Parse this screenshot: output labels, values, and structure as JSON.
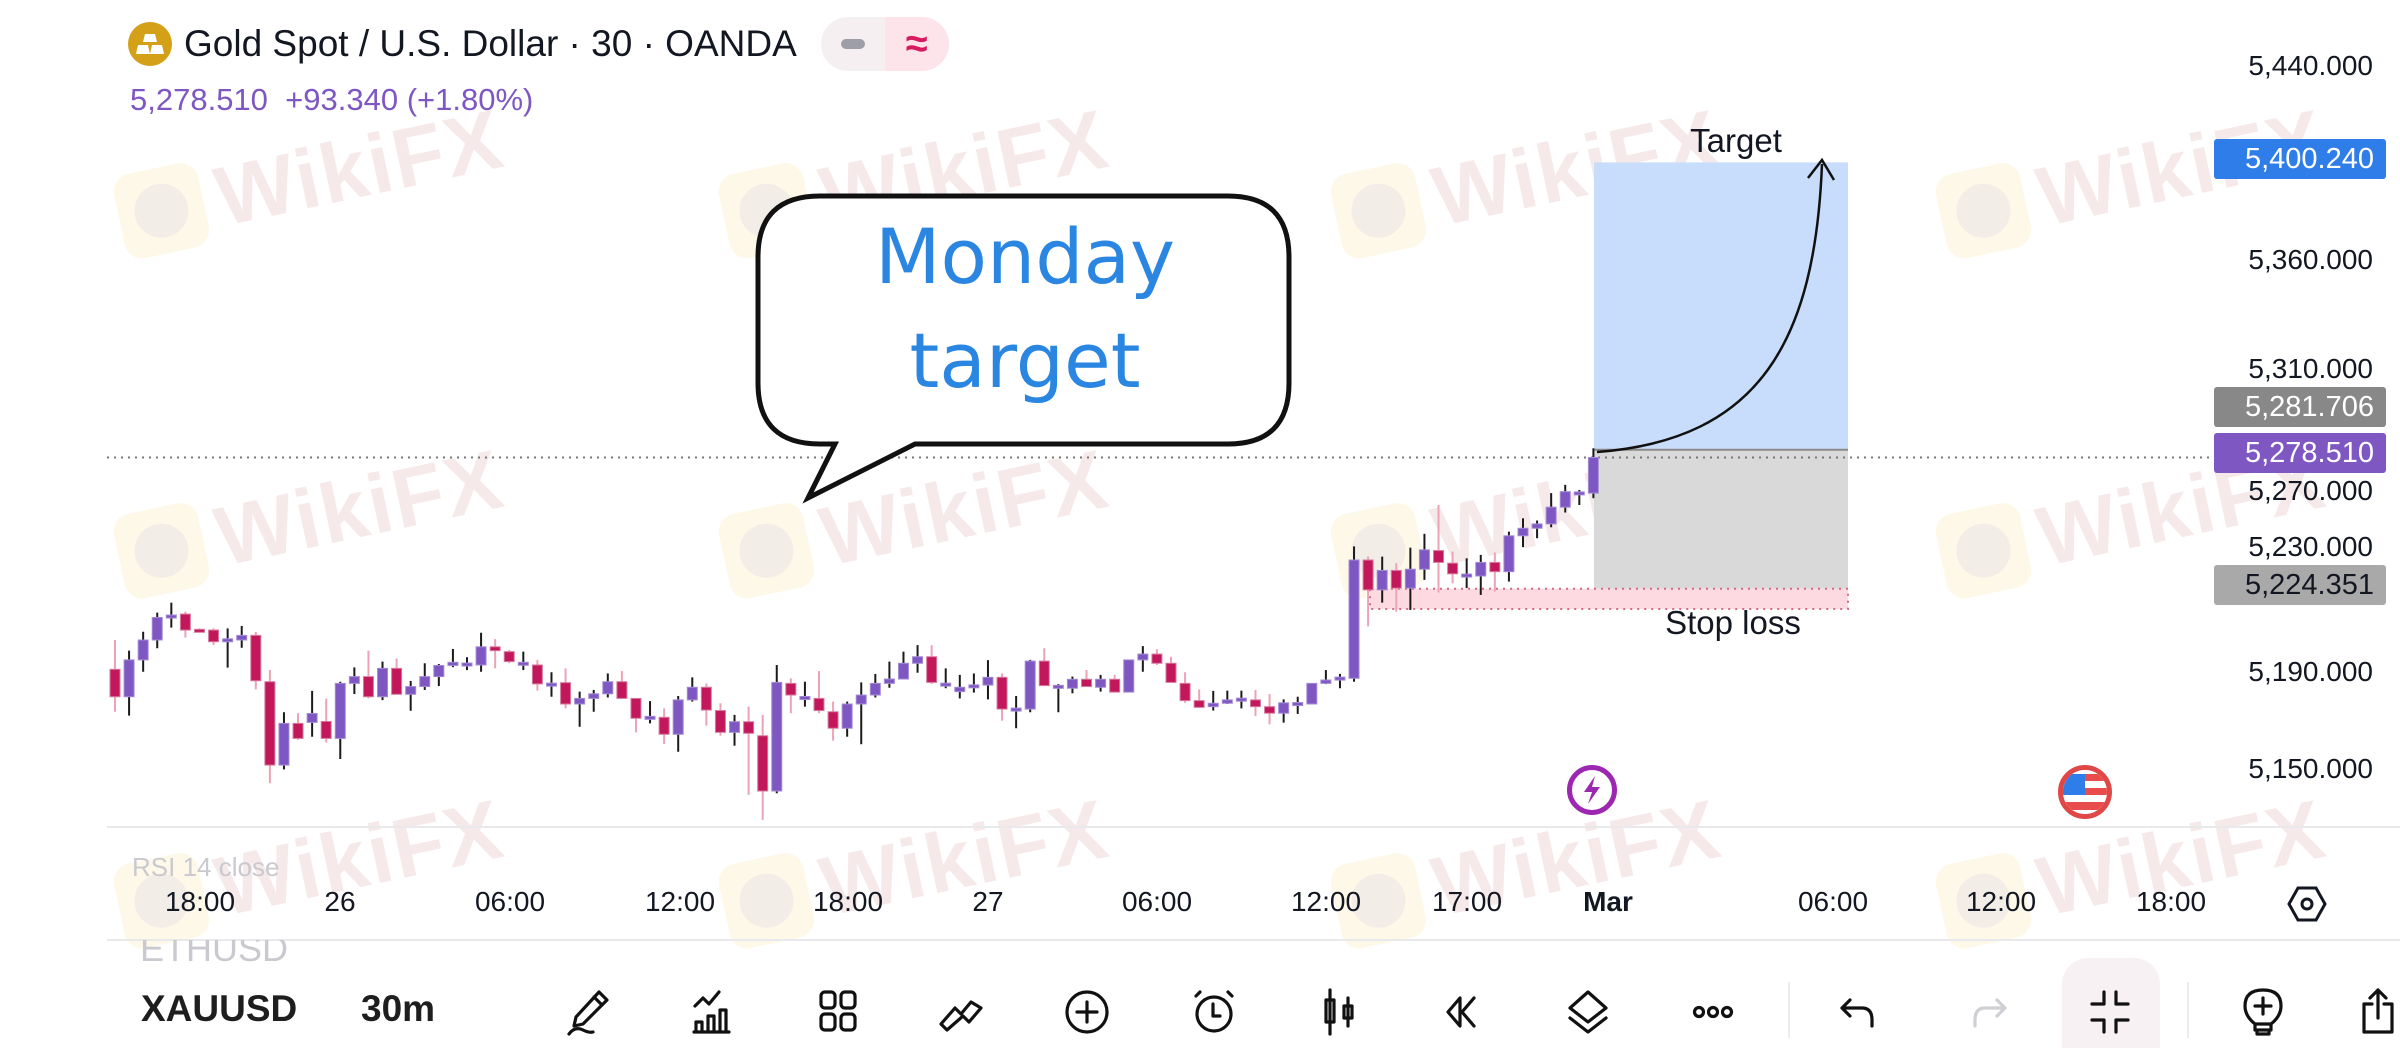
{
  "header": {
    "title": "Gold Spot / U.S. Dollar · 30 · OANDA",
    "last_price": "5,278.510",
    "change": "+93.340 (+1.80%)",
    "pill_left_icon": "minus-icon",
    "pill_right_icon": "approx-icon"
  },
  "price_axis": {
    "ticks": [
      "5,440.000",
      "5,360.000",
      "5,310.000",
      "5,270.000",
      "5,230.000",
      "5,190.000",
      "5,150.000"
    ],
    "tick_values": [
      5440,
      5360,
      5310,
      5270,
      5230,
      5190,
      5150
    ],
    "labels": {
      "target": "5,400.240",
      "entry": "5,281.706",
      "current": "5,278.510",
      "stop": "5,224.351"
    }
  },
  "time_axis": {
    "labels": [
      "18:00",
      "26",
      "06:00",
      "12:00",
      "18:00",
      "27",
      "06:00",
      "12:00",
      "17:00",
      "Mar",
      "06:00",
      "12:00",
      "18:00"
    ]
  },
  "annotations": {
    "bubble_line1": "Monday",
    "bubble_line2": "target",
    "target_label": "Target",
    "stop_label": "Stop loss"
  },
  "faded": {
    "indicator": "RSI 14 close",
    "other_symbol": "ETHUSD"
  },
  "watermark": "WikiFX",
  "toolbar": {
    "symbol": "XAUUSD",
    "timeframe": "30m",
    "icons": [
      "pencil-draw-icon",
      "indicators-icon",
      "templates-grid-icon",
      "patterns-icon",
      "add-circle-icon",
      "alarm-icon",
      "candles-type-icon",
      "replay-icon",
      "layers-icon",
      "more-icon",
      "undo-icon",
      "redo-icon",
      "exit-fullscreen-icon",
      "idea-bulb-icon",
      "share-icon"
    ]
  },
  "colors": {
    "up": "#7E57C2",
    "down": "#C2185B",
    "up_wick": "#1a1a1a",
    "down_wick": "#eca3b6",
    "target_zone": "#c8ddfb",
    "risk_zone": "#d9d9d9",
    "stop_zone": "#fdd9e1",
    "target_box": "#2f7de8",
    "current_box": "#7e57c2",
    "entry_box": "#888888",
    "stop_box": "#a9a9a9"
  },
  "chart_data": {
    "type": "candlestick",
    "interval": "30",
    "ylim": [
      5130,
      5440
    ],
    "candles": [
      [
        5191.1,
        5203.2,
        5173.6,
        5179.8
      ],
      [
        5179.8,
        5198.8,
        5172.0,
        5195.0
      ],
      [
        5195.0,
        5206.6,
        5190.1,
        5203.2
      ],
      [
        5203.2,
        5214.5,
        5199.8,
        5212.5
      ],
      [
        5212.5,
        5218.6,
        5208.3,
        5213.5
      ],
      [
        5213.9,
        5214.9,
        5204.2,
        5207.3
      ],
      [
        5207.6,
        5208.0,
        5207.0,
        5207.3
      ],
      [
        5207.3,
        5208.0,
        5201.1,
        5202.5
      ],
      [
        5203.5,
        5208.0,
        5191.8,
        5203.7
      ],
      [
        5203.2,
        5209.0,
        5200.0,
        5205.1
      ],
      [
        5205.1,
        5206.5,
        5182.8,
        5186.4
      ],
      [
        5186.0,
        5190.8,
        5144.1,
        5151.6
      ],
      [
        5151.6,
        5173.4,
        5149.8,
        5168.8
      ],
      [
        5168.8,
        5173.0,
        5162.0,
        5162.6
      ],
      [
        5169.2,
        5182.2,
        5163.3,
        5172.9
      ],
      [
        5169.6,
        5179.0,
        5160.9,
        5162.6
      ],
      [
        5162.6,
        5186.0,
        5154.1,
        5185.3
      ],
      [
        5185.3,
        5191.9,
        5180.9,
        5188.1
      ],
      [
        5188.1,
        5198.8,
        5179.1,
        5179.8
      ],
      [
        5179.8,
        5194.3,
        5178.4,
        5191.5
      ],
      [
        5191.5,
        5195.6,
        5180.8,
        5180.8
      ],
      [
        5180.8,
        5186.3,
        5174.0,
        5184.0
      ],
      [
        5184.0,
        5193.6,
        5182.6,
        5188.1
      ],
      [
        5188.1,
        5193.3,
        5184.2,
        5192.7
      ],
      [
        5192.7,
        5199.5,
        5192.0,
        5194.0
      ],
      [
        5193.6,
        5196.1,
        5190.8,
        5193.7
      ],
      [
        5192.9,
        5206.2,
        5190.1,
        5200.4
      ],
      [
        5200.4,
        5203.6,
        5191.5,
        5198.8
      ],
      [
        5198.4,
        5199.1,
        5193.6,
        5194.3
      ],
      [
        5193.9,
        5198.4,
        5190.8,
        5194.0
      ],
      [
        5192.9,
        5195.0,
        5182.3,
        5185.1
      ],
      [
        5185.3,
        5189.9,
        5179.8,
        5185.4
      ],
      [
        5185.6,
        5191.5,
        5175.0,
        5176.8
      ],
      [
        5176.8,
        5181.9,
        5167.4,
        5179.1
      ],
      [
        5179.1,
        5182.6,
        5173.6,
        5181.0
      ],
      [
        5181.0,
        5189.4,
        5179.5,
        5186.0
      ],
      [
        5186.0,
        5190.4,
        5179.1,
        5179.1
      ],
      [
        5179.1,
        5179.1,
        5165.1,
        5170.9
      ],
      [
        5171.6,
        5178.0,
        5168.8,
        5171.7
      ],
      [
        5171.3,
        5175.0,
        5160.3,
        5164.3
      ],
      [
        5164.3,
        5180.1,
        5157.1,
        5178.5
      ],
      [
        5178.5,
        5187.8,
        5177.8,
        5183.7
      ],
      [
        5183.7,
        5185.3,
        5167.9,
        5174.3
      ],
      [
        5174.1,
        5177.1,
        5163.7,
        5165.1
      ],
      [
        5165.1,
        5172.3,
        5159.6,
        5169.5
      ],
      [
        5169.5,
        5175.7,
        5139.3,
        5164.7
      ],
      [
        5163.7,
        5172.3,
        5129.0,
        5140.9
      ],
      [
        5140.9,
        5192.9,
        5140.0,
        5185.7
      ],
      [
        5185.3,
        5187.4,
        5173.0,
        5180.5
      ],
      [
        5179.8,
        5186.0,
        5175.7,
        5179.9
      ],
      [
        5179.1,
        5190.4,
        5173.0,
        5174.1
      ],
      [
        5173.6,
        5177.8,
        5161.7,
        5166.8
      ],
      [
        5166.8,
        5177.8,
        5163.3,
        5176.8
      ],
      [
        5176.8,
        5185.7,
        5160.2,
        5180.5
      ],
      [
        5180.5,
        5189.2,
        5179.5,
        5185.3
      ],
      [
        5185.3,
        5194.3,
        5183.5,
        5187.1
      ],
      [
        5187.1,
        5198.4,
        5187.1,
        5193.6
      ],
      [
        5193.6,
        5201.1,
        5189.7,
        5196.3
      ],
      [
        5196.3,
        5201.1,
        5185.0,
        5185.7
      ],
      [
        5185.3,
        5191.5,
        5183.3,
        5185.4
      ],
      [
        5181.9,
        5188.8,
        5179.1,
        5183.7
      ],
      [
        5184.6,
        5189.4,
        5181.5,
        5184.7
      ],
      [
        5184.6,
        5194.9,
        5178.7,
        5187.8
      ],
      [
        5187.8,
        5189.4,
        5169.9,
        5174.7
      ],
      [
        5175.0,
        5180.1,
        5166.8,
        5175.1
      ],
      [
        5174.7,
        5195.0,
        5173.4,
        5194.5
      ],
      [
        5194.5,
        5199.8,
        5184.4,
        5184.4
      ],
      [
        5184.4,
        5185.0,
        5173.4,
        5184.5
      ],
      [
        5183.3,
        5188.1,
        5181.2,
        5187.0
      ],
      [
        5187.0,
        5190.8,
        5184.0,
        5184.0
      ],
      [
        5183.7,
        5188.8,
        5181.9,
        5187.0
      ],
      [
        5187.0,
        5188.8,
        5181.7,
        5181.7
      ],
      [
        5181.7,
        5195.0,
        5181.7,
        5195.0
      ],
      [
        5195.0,
        5200.7,
        5190.1,
        5197.4
      ],
      [
        5197.4,
        5199.4,
        5192.9,
        5193.6
      ],
      [
        5193.6,
        5196.3,
        5185.7,
        5185.7
      ],
      [
        5185.3,
        5189.9,
        5177.3,
        5178.2
      ],
      [
        5178.2,
        5182.8,
        5175.4,
        5175.4
      ],
      [
        5175.7,
        5182.2,
        5174.1,
        5177.1
      ],
      [
        5177.1,
        5182.3,
        5176.8,
        5178.5
      ],
      [
        5179.1,
        5182.3,
        5175.0,
        5179.2
      ],
      [
        5178.5,
        5182.6,
        5171.8,
        5175.7
      ],
      [
        5175.7,
        5180.9,
        5168.4,
        5173.0
      ],
      [
        5173.0,
        5178.7,
        5169.1,
        5177.3
      ],
      [
        5177.3,
        5179.8,
        5172.7,
        5177.4
      ],
      [
        5176.8,
        5185.3,
        5176.8,
        5185.3
      ],
      [
        5185.3,
        5190.8,
        5185.0,
        5186.7
      ],
      [
        5187.8,
        5189.2,
        5183.3,
        5187.9
      ],
      [
        5187.4,
        5241.8,
        5186.0,
        5236.2
      ],
      [
        5236.2,
        5237.6,
        5208.8,
        5223.9
      ],
      [
        5223.9,
        5237.6,
        5218.6,
        5231.9
      ],
      [
        5231.9,
        5234.9,
        5214.9,
        5224.6
      ],
      [
        5224.6,
        5241.3,
        5215.6,
        5232.4
      ],
      [
        5232.4,
        5247.0,
        5228.0,
        5240.4
      ],
      [
        5240.1,
        5258.9,
        5222.8,
        5235.2
      ],
      [
        5234.9,
        5239.7,
        5226.6,
        5230.5
      ],
      [
        5230.3,
        5236.9,
        5224.6,
        5230.4
      ],
      [
        5229.6,
        5238.3,
        5221.8,
        5235.2
      ],
      [
        5235.2,
        5239.3,
        5223.2,
        5231.4
      ],
      [
        5231.4,
        5247.9,
        5227.3,
        5246.2
      ],
      [
        5246.2,
        5253.4,
        5241.5,
        5249.3
      ],
      [
        5249.3,
        5252.5,
        5245.2,
        5251.1
      ],
      [
        5251.1,
        5263.8,
        5249.7,
        5258.0
      ],
      [
        5258.0,
        5267.2,
        5255.8,
        5264.4
      ],
      [
        5264.2,
        5265.1,
        5258.9,
        5264.3
      ],
      [
        5263.8,
        5282.3,
        5261.7,
        5278.5
      ]
    ],
    "position": {
      "entry": 5281.706,
      "target": 5400.24,
      "stop": 5224.351,
      "stop_lower": 5216.0
    },
    "current_price": 5278.51
  }
}
